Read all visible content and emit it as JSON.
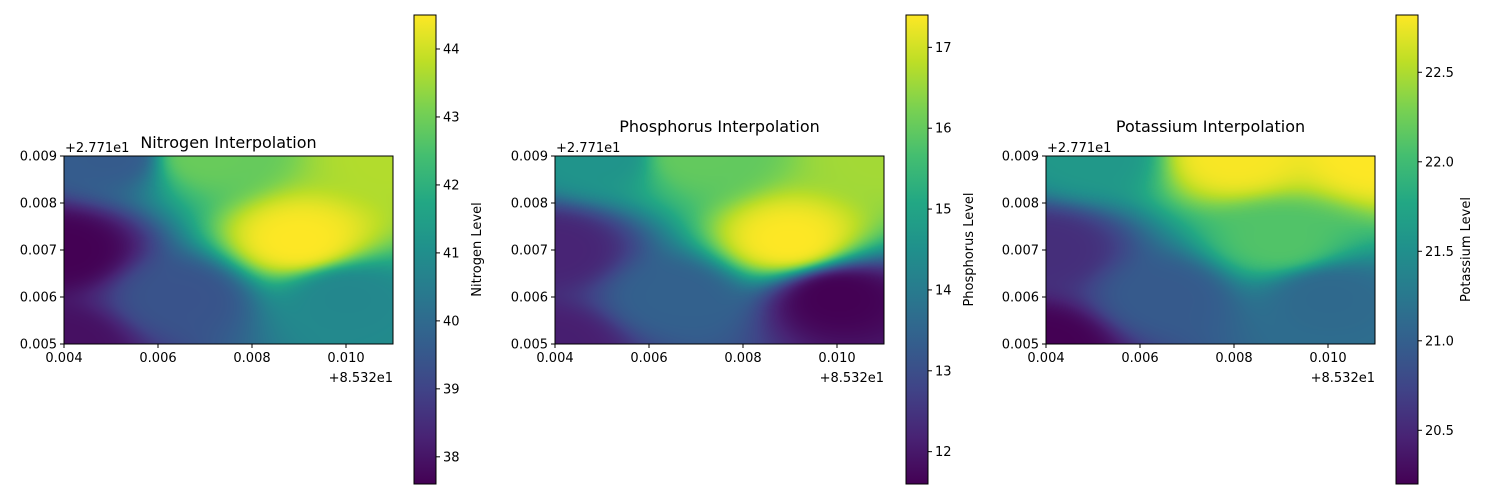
{
  "chart_data": [
    {
      "type": "heatmap",
      "title": "Nitrogen Interpolation",
      "xlim": [
        0.004,
        0.011
      ],
      "ylim": [
        0.005,
        0.009
      ],
      "xticks": [
        0.004,
        0.006,
        0.008,
        0.01
      ],
      "xtick_labels": [
        "0.004",
        "0.006",
        "0.008",
        "0.010"
      ],
      "yticks": [
        0.005,
        0.006,
        0.007,
        0.008,
        0.009
      ],
      "ytick_labels": [
        "0.005",
        "0.006",
        "0.007",
        "0.008",
        "0.009"
      ],
      "x_offset_label": "+8.532e1",
      "y_offset_label": "+2.771e1",
      "colormap": "viridis",
      "colorbar": {
        "label": "Nitrogen Level",
        "range": [
          37.6,
          44.5
        ],
        "ticks": [
          38,
          39,
          40,
          41,
          42,
          43,
          44
        ],
        "tick_labels": [
          "38",
          "39",
          "40",
          "41",
          "42",
          "43",
          "44"
        ]
      },
      "samples": [
        {
          "x": 0.004,
          "y": 0.007,
          "v": 37.6
        },
        {
          "x": 0.009,
          "y": 0.0072,
          "v": 44.5
        },
        {
          "x": 0.01,
          "y": 0.006,
          "v": 40.8
        },
        {
          "x": 0.005,
          "y": 0.009,
          "v": 39.6
        },
        {
          "x": 0.004,
          "y": 0.005,
          "v": 37.9
        },
        {
          "x": 0.011,
          "y": 0.009,
          "v": 43.7
        },
        {
          "x": 0.0065,
          "y": 0.006,
          "v": 39.4
        },
        {
          "x": 0.007,
          "y": 0.009,
          "v": 42.9
        }
      ]
    },
    {
      "type": "heatmap",
      "title": "Phosphorus Interpolation",
      "xlim": [
        0.004,
        0.011
      ],
      "ylim": [
        0.005,
        0.009
      ],
      "xticks": [
        0.004,
        0.006,
        0.008,
        0.01
      ],
      "xtick_labels": [
        "0.004",
        "0.006",
        "0.008",
        "0.010"
      ],
      "yticks": [
        0.005,
        0.006,
        0.007,
        0.008,
        0.009
      ],
      "ytick_labels": [
        "0.005",
        "0.006",
        "0.007",
        "0.008",
        "0.009"
      ],
      "x_offset_label": "+8.532e1",
      "y_offset_label": "+2.771e1",
      "colormap": "viridis",
      "colorbar": {
        "label": "Phosphorus Level",
        "range": [
          11.6,
          17.4
        ],
        "ticks": [
          12,
          13,
          14,
          15,
          16,
          17
        ],
        "tick_labels": [
          "12",
          "13",
          "14",
          "15",
          "16",
          "17"
        ]
      },
      "samples": [
        {
          "x": 0.004,
          "y": 0.007,
          "v": 12.2
        },
        {
          "x": 0.009,
          "y": 0.0072,
          "v": 17.4
        },
        {
          "x": 0.01,
          "y": 0.006,
          "v": 11.6
        },
        {
          "x": 0.005,
          "y": 0.009,
          "v": 14.6
        },
        {
          "x": 0.004,
          "y": 0.005,
          "v": 12.1
        },
        {
          "x": 0.011,
          "y": 0.009,
          "v": 16.6
        },
        {
          "x": 0.0065,
          "y": 0.006,
          "v": 13.4
        },
        {
          "x": 0.007,
          "y": 0.009,
          "v": 16.0
        }
      ]
    },
    {
      "type": "heatmap",
      "title": "Potassium Interpolation",
      "xlim": [
        0.004,
        0.011
      ],
      "ylim": [
        0.005,
        0.009
      ],
      "xticks": [
        0.004,
        0.006,
        0.008,
        0.01
      ],
      "xtick_labels": [
        "0.004",
        "0.006",
        "0.008",
        "0.010"
      ],
      "yticks": [
        0.005,
        0.006,
        0.007,
        0.008,
        0.009
      ],
      "ytick_labels": [
        "0.005",
        "0.006",
        "0.007",
        "0.008",
        "0.009"
      ],
      "x_offset_label": "+8.532e1",
      "y_offset_label": "+2.771e1",
      "colormap": "viridis",
      "colorbar": {
        "label": "Potassium Level",
        "range": [
          20.2,
          22.82
        ],
        "ticks": [
          20.5,
          21.0,
          21.5,
          22.0,
          22.5
        ],
        "tick_labels": [
          "20.5",
          "21.0",
          "21.5",
          "22.0",
          "22.5"
        ]
      },
      "samples": [
        {
          "x": 0.004,
          "y": 0.007,
          "v": 20.55
        },
        {
          "x": 0.009,
          "y": 0.0072,
          "v": 22.1
        },
        {
          "x": 0.01,
          "y": 0.006,
          "v": 21.1
        },
        {
          "x": 0.005,
          "y": 0.009,
          "v": 21.6
        },
        {
          "x": 0.004,
          "y": 0.005,
          "v": 20.2
        },
        {
          "x": 0.011,
          "y": 0.009,
          "v": 22.82
        },
        {
          "x": 0.0065,
          "y": 0.006,
          "v": 20.95
        },
        {
          "x": 0.008,
          "y": 0.009,
          "v": 22.8
        }
      ]
    }
  ]
}
